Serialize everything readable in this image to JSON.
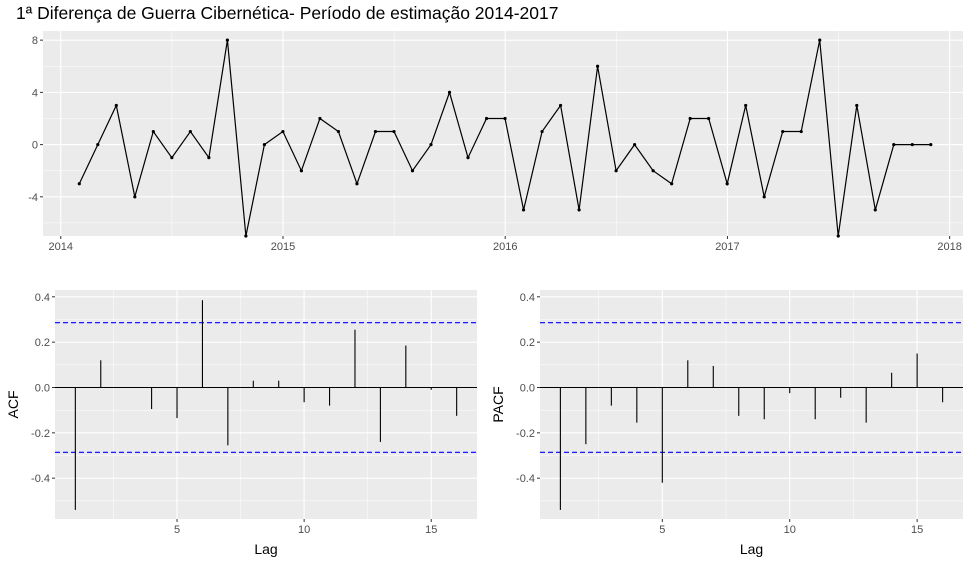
{
  "chart_data": [
    {
      "type": "line",
      "title": "1ª Diferença de Guerra Cibernética- Período de estimação 2014-2017",
      "xlabel": "",
      "ylabel": "",
      "x_start": 2014.0833,
      "x_step": 0.0833,
      "values": [
        -3,
        0,
        3,
        -4,
        1,
        -1,
        1,
        -1,
        8,
        -7,
        0,
        1,
        -2,
        2,
        1,
        -3,
        1,
        1,
        -2,
        0,
        4,
        -1,
        2,
        2,
        -5,
        1,
        3,
        -5,
        6,
        -2,
        0,
        -2,
        -3,
        2,
        2,
        -3,
        3,
        -4,
        1,
        1,
        8,
        -7,
        3,
        -5,
        0,
        0,
        0
      ],
      "xlim": [
        2013.92,
        2018.06
      ],
      "ylim": [
        -7.0,
        8.7
      ],
      "x_ticks": [
        2014,
        2015,
        2016,
        2017,
        2018
      ],
      "x_tick_labels": [
        "2014",
        "2015",
        "2016",
        "2017",
        "2018"
      ],
      "y_ticks": [
        8,
        4,
        0,
        -4
      ],
      "y_tick_labels": [
        "8",
        "4",
        "0",
        "-4"
      ],
      "grid": true,
      "markers": true
    },
    {
      "type": "bar",
      "title": "",
      "xlabel": "Lag",
      "ylabel": "ACF",
      "lags": [
        1,
        2,
        3,
        4,
        5,
        6,
        7,
        8,
        9,
        10,
        11,
        12,
        13,
        14,
        15,
        16
      ],
      "values": [
        -0.54,
        0.12,
        0.0,
        -0.095,
        -0.135,
        0.385,
        -0.255,
        0.03,
        0.03,
        -0.065,
        -0.08,
        0.255,
        -0.24,
        0.185,
        -0.01,
        -0.125
      ],
      "ci": 0.286,
      "xlim": [
        0.2,
        16.8
      ],
      "ylim": [
        -0.58,
        0.43
      ],
      "x_ticks": [
        5,
        10,
        15
      ],
      "x_tick_labels": [
        "5",
        "10",
        "15"
      ],
      "y_ticks": [
        0.4,
        0.2,
        0.0,
        -0.2,
        -0.4
      ],
      "y_tick_labels": [
        "0.4",
        "0.2",
        "0.0",
        "-0.2",
        "-0.4"
      ],
      "grid": true
    },
    {
      "type": "bar",
      "title": "",
      "xlabel": "Lag",
      "ylabel": "PACF",
      "lags": [
        1,
        2,
        3,
        4,
        5,
        6,
        7,
        8,
        9,
        10,
        11,
        12,
        13,
        14,
        15,
        16
      ],
      "values": [
        -0.54,
        -0.25,
        -0.08,
        -0.155,
        -0.42,
        0.12,
        0.095,
        -0.125,
        -0.14,
        -0.025,
        -0.14,
        -0.045,
        -0.155,
        0.065,
        0.15,
        -0.065
      ],
      "ci": 0.286,
      "xlim": [
        0.2,
        16.8
      ],
      "ylim": [
        -0.58,
        0.43
      ],
      "x_ticks": [
        5,
        10,
        15
      ],
      "x_tick_labels": [
        "5",
        "10",
        "15"
      ],
      "y_ticks": [
        0.4,
        0.2,
        0.0,
        -0.2,
        -0.4
      ],
      "y_tick_labels": [
        "0.4",
        "0.2",
        "0.0",
        "-0.2",
        "-0.4"
      ],
      "grid": true
    }
  ],
  "colors": {
    "panel_background": "#ebebeb",
    "grid_major": "#ffffff",
    "line": "#000000",
    "confidence_band": "#0000ff",
    "tick_text": "#4d4d4d"
  }
}
